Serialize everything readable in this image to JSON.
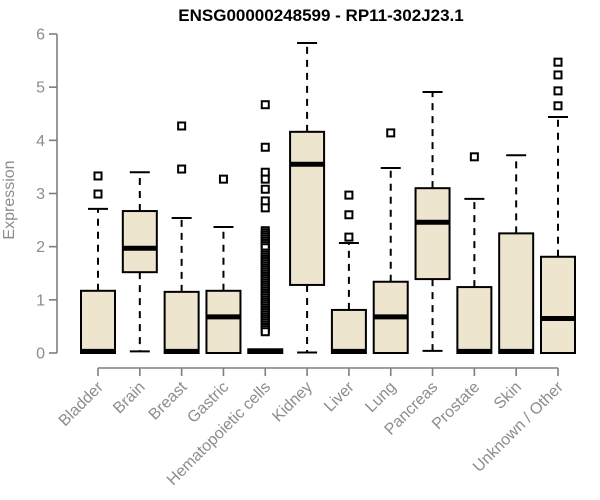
{
  "chart_data": {
    "type": "boxplot",
    "title": "ENSG00000248599 - RP11-302J23.1",
    "xlabel": "",
    "ylabel": "Expression",
    "ylim": [
      0,
      6
    ],
    "yticks": [
      0,
      1,
      2,
      3,
      4,
      5,
      6
    ],
    "grid": false,
    "legend": false,
    "categories": [
      "Bladder",
      "Brain",
      "Breast",
      "Gastric",
      "Hematopoietic cells",
      "Kidney",
      "Liver",
      "Lung",
      "Pancreas",
      "Prostate",
      "Skin",
      "Unknown / Other"
    ],
    "series": [
      {
        "name": "Bladder",
        "whisker_low": 0,
        "q1": 0,
        "median": 0.03,
        "q3": 1.17,
        "whisker_high": 2.71,
        "outliers": [
          2.99,
          3.33
        ]
      },
      {
        "name": "Brain",
        "whisker_low": 0.03,
        "q1": 1.52,
        "median": 1.97,
        "q3": 2.67,
        "whisker_high": 3.4,
        "outliers": []
      },
      {
        "name": "Breast",
        "whisker_low": 0,
        "q1": 0,
        "median": 0.03,
        "q3": 1.15,
        "whisker_high": 2.54,
        "outliers": [
          3.46,
          4.27
        ]
      },
      {
        "name": "Gastric",
        "whisker_low": 0,
        "q1": 0,
        "median": 0.68,
        "q3": 1.17,
        "whisker_high": 2.37,
        "outliers": [
          3.27
        ]
      },
      {
        "name": "Hematopoietic cells",
        "whisker_low": 0,
        "q1": 0,
        "median": 0.03,
        "q3": 0.07,
        "whisker_high": 0.07,
        "outliers": [
          4.67,
          3.87,
          3.4,
          3.27,
          3.08,
          2.86,
          2.73,
          2.3,
          2.26,
          2.22,
          2.18,
          2.14,
          2.1,
          2.06,
          2.02,
          1.98,
          1.88,
          1.84,
          1.8,
          1.76,
          1.72,
          1.68,
          1.64,
          1.6,
          1.56,
          1.52,
          1.48,
          1.44,
          1.4,
          1.36,
          1.32,
          1.28,
          1.24,
          1.2,
          1.16,
          1.12,
          1.08,
          1.04,
          1.0,
          0.96,
          0.92,
          0.88,
          0.84,
          0.8,
          0.76,
          0.72,
          0.68,
          0.64,
          0.6,
          0.56,
          0.52,
          0.48,
          0.44,
          0.4
        ]
      },
      {
        "name": "Kidney",
        "whisker_low": 0.01,
        "q1": 1.28,
        "median": 3.55,
        "q3": 4.16,
        "whisker_high": 5.83,
        "outliers": []
      },
      {
        "name": "Liver",
        "whisker_low": 0,
        "q1": 0,
        "median": 0.03,
        "q3": 0.81,
        "whisker_high": 2.07,
        "outliers": [
          2.18,
          2.6,
          2.97
        ]
      },
      {
        "name": "Lung",
        "whisker_low": 0,
        "q1": 0,
        "median": 0.68,
        "q3": 1.34,
        "whisker_high": 3.48,
        "outliers": [
          4.14
        ]
      },
      {
        "name": "Pancreas",
        "whisker_low": 0.04,
        "q1": 1.39,
        "median": 2.46,
        "q3": 3.1,
        "whisker_high": 4.91,
        "outliers": []
      },
      {
        "name": "Prostate",
        "whisker_low": 0,
        "q1": 0,
        "median": 0.03,
        "q3": 1.24,
        "whisker_high": 2.9,
        "outliers": [
          3.69
        ]
      },
      {
        "name": "Skin",
        "whisker_low": 0,
        "q1": 0,
        "median": 0.03,
        "q3": 2.25,
        "whisker_high": 3.72,
        "outliers": []
      },
      {
        "name": "Unknown / Other",
        "whisker_low": 0,
        "q1": 0,
        "median": 0.65,
        "q3": 1.81,
        "whisker_high": 4.44,
        "outliers": [
          4.65,
          4.93,
          5.23,
          5.47
        ]
      }
    ],
    "colors": {
      "box_fill": "#EDE5CD",
      "box_border": "#000000",
      "median": "#000000",
      "whisker": "#000000",
      "outlier_fill": "#FFFFFF",
      "axis": "#7E7E7E",
      "tick_label": "#8C8C8C",
      "title": "#000000",
      "background": "#FFFFFF"
    }
  }
}
